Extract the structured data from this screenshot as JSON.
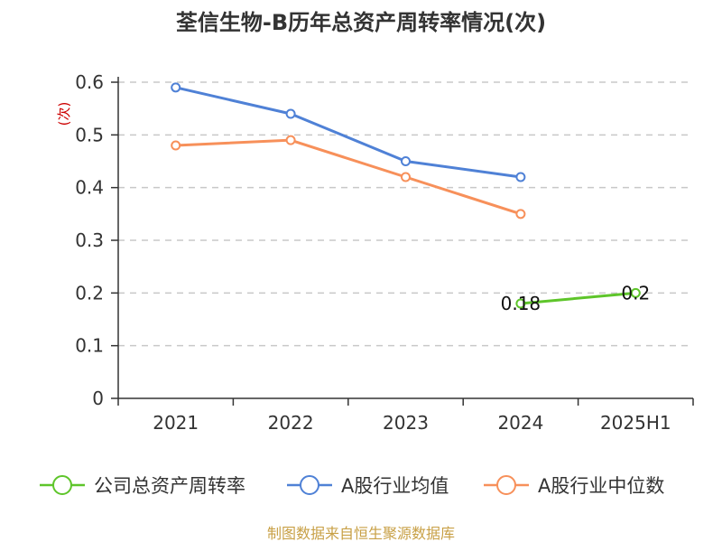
{
  "chart_data": {
    "type": "line",
    "title": "荃信生物-B历年总资产周转率情况(次)",
    "xlabel": "",
    "ylabel": "(次)",
    "categories": [
      "2021",
      "2022",
      "2023",
      "2024",
      "2025H1"
    ],
    "ylim": [
      0,
      0.6
    ],
    "yticks": [
      "0",
      "0.1",
      "0.2",
      "0.3",
      "0.4",
      "0.5",
      "0.6"
    ],
    "grid": true,
    "legend_position": "bottom",
    "series": [
      {
        "name": "公司总资产周转率",
        "color": "#5ec52a",
        "values": [
          null,
          null,
          null,
          0.18,
          0.2
        ],
        "labels": [
          "",
          "",
          "",
          "0.18",
          "0.2"
        ]
      },
      {
        "name": "A股行业均值",
        "color": "#4f81d6",
        "values": [
          0.59,
          0.54,
          0.45,
          0.42,
          null
        ],
        "labels": [
          "",
          "",
          "",
          "",
          ""
        ]
      },
      {
        "name": "A股行业中位数",
        "color": "#f7905a",
        "values": [
          0.48,
          0.49,
          0.42,
          0.35,
          null
        ],
        "labels": [
          "",
          "",
          "",
          "",
          ""
        ]
      }
    ]
  },
  "source": {
    "text": "制图数据来自恒生聚源数据库",
    "color": "#c8a046"
  }
}
